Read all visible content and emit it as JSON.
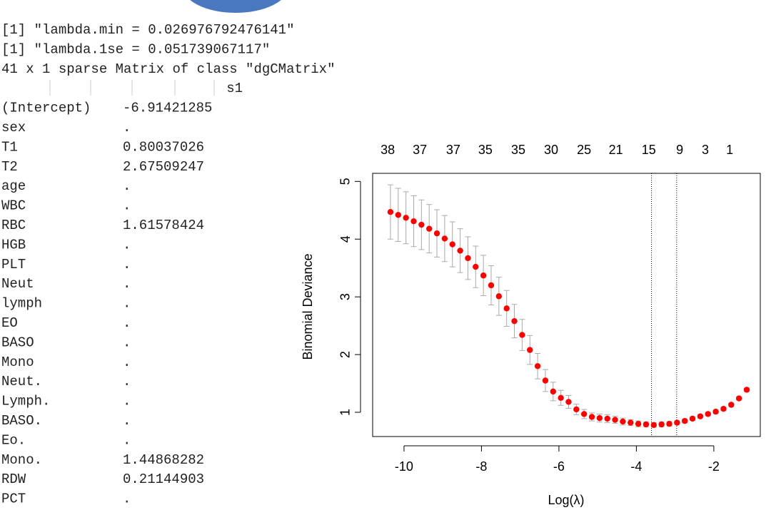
{
  "console": {
    "lines": [
      "[1] \"lambda.min = 0.026976792476141\"",
      "[1] \"lambda.1se = 0.051739067117\"",
      "41 x 1 sparse Matrix of class \"dgCMatrix\""
    ],
    "header": "s1",
    "rows": [
      [
        "(Intercept)",
        "-6.91421285"
      ],
      [
        "sex",
        "."
      ],
      [
        "T1",
        "0.80037026"
      ],
      [
        "T2",
        "2.67509247"
      ],
      [
        "age",
        "."
      ],
      [
        "WBC",
        "."
      ],
      [
        "RBC",
        "1.61578424"
      ],
      [
        "HGB",
        "."
      ],
      [
        "PLT",
        "."
      ],
      [
        "Neut",
        "."
      ],
      [
        "lymph",
        "."
      ],
      [
        "EO",
        "."
      ],
      [
        "BASO",
        "."
      ],
      [
        "Mono",
        "."
      ],
      [
        "Neut.",
        "."
      ],
      [
        "Lymph.",
        "."
      ],
      [
        "BASO.",
        "."
      ],
      [
        "Eo.",
        "."
      ],
      [
        "Mono.",
        "1.44868282"
      ],
      [
        "RDW",
        "0.21144903"
      ],
      [
        "PCT",
        "."
      ]
    ]
  },
  "chart_data": {
    "type": "errorbar-scatter",
    "xlabel": "Log(λ)",
    "ylabel": "Binomial Deviance",
    "xlim": [
      -10.81,
      -0.8
    ],
    "ylim": [
      0.58,
      5.14
    ],
    "xticks": [
      -10,
      -8,
      -6,
      -4,
      -2
    ],
    "yticks": [
      1,
      2,
      3,
      4,
      5
    ],
    "top_ticks": [
      {
        "value": -10.42,
        "label": "38"
      },
      {
        "value": -9.59,
        "label": "37"
      },
      {
        "value": -8.73,
        "label": "37"
      },
      {
        "value": -7.9,
        "label": "35"
      },
      {
        "value": -7.05,
        "label": "35"
      },
      {
        "value": -6.2,
        "label": "30"
      },
      {
        "value": -5.35,
        "label": "25"
      },
      {
        "value": -4.53,
        "label": "21"
      },
      {
        "value": -3.68,
        "label": "15"
      },
      {
        "value": -2.88,
        "label": "9"
      },
      {
        "value": -2.22,
        "label": "3"
      },
      {
        "value": -1.59,
        "label": "1"
      }
    ],
    "vlines": [
      -3.61,
      -2.96
    ],
    "color": "#ff0000",
    "error_color": "#aaaaaa",
    "x": [
      -10.35,
      -10.15,
      -9.95,
      -9.75,
      -9.55,
      -9.35,
      -9.15,
      -8.95,
      -8.75,
      -8.55,
      -8.35,
      -8.15,
      -7.95,
      -7.75,
      -7.55,
      -7.35,
      -7.15,
      -6.95,
      -6.75,
      -6.55,
      -6.35,
      -6.15,
      -5.95,
      -5.75,
      -5.55,
      -5.35,
      -5.15,
      -4.95,
      -4.75,
      -4.55,
      -4.35,
      -4.15,
      -3.95,
      -3.75,
      -3.55,
      -3.35,
      -3.15,
      -2.95,
      -2.75,
      -2.55,
      -2.35,
      -2.15,
      -1.95,
      -1.75,
      -1.55,
      -1.35,
      -1.15
    ],
    "values": [
      4.47,
      4.42,
      4.37,
      4.31,
      4.25,
      4.18,
      4.1,
      4.01,
      3.91,
      3.8,
      3.67,
      3.52,
      3.37,
      3.2,
      3.01,
      2.8,
      2.58,
      2.34,
      2.08,
      1.8,
      1.55,
      1.36,
      1.25,
      1.18,
      1.05,
      0.97,
      0.92,
      0.9,
      0.89,
      0.87,
      0.84,
      0.82,
      0.8,
      0.79,
      0.78,
      0.79,
      0.8,
      0.82,
      0.85,
      0.89,
      0.93,
      0.97,
      1.01,
      1.06,
      1.13,
      1.24,
      1.39
    ],
    "errors": [
      0.47,
      0.46,
      0.45,
      0.44,
      0.43,
      0.42,
      0.41,
      0.4,
      0.39,
      0.38,
      0.37,
      0.36,
      0.35,
      0.34,
      0.33,
      0.31,
      0.29,
      0.27,
      0.25,
      0.22,
      0.19,
      0.16,
      0.13,
      0.11,
      0.09,
      0.08,
      0.07,
      0.07,
      0.07,
      0.06,
      0.06,
      0.05,
      0.05,
      0.04,
      0.04,
      0.04,
      0.04,
      0.03,
      0.03,
      0.03,
      0.03,
      0.03,
      0.03,
      0.03,
      0.03,
      0.03,
      0.03
    ]
  }
}
